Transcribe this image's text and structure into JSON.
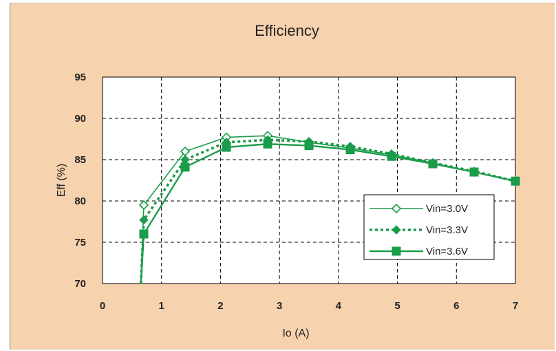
{
  "chart_data": {
    "type": "line",
    "title": "Efficiency",
    "xlabel": "Io (A)",
    "ylabel": "Eff (%)",
    "xlim": [
      0,
      7
    ],
    "ylim": [
      70,
      95
    ],
    "xticks": [
      "0",
      "1",
      "2",
      "3",
      "4",
      "5",
      "6",
      "7"
    ],
    "yticks": [
      "70",
      "75",
      "80",
      "85",
      "90",
      "95"
    ],
    "grid": true,
    "legend_position": "right",
    "colors": {
      "series": "#1a9c4a",
      "background": "#f7d2ae",
      "plot_area": "#ffffff"
    },
    "series": [
      {
        "name": "Vin=3.0V",
        "marker": "diamond-open",
        "line": "solid-thin",
        "x": [
          0.65,
          0.7,
          1.4,
          2.1,
          2.8,
          3.5,
          4.2,
          4.9,
          5.6,
          6.3,
          7.0
        ],
        "y": [
          70,
          79.5,
          86.0,
          87.7,
          87.9,
          87.1,
          86.4,
          85.6,
          84.6,
          83.5,
          82.4
        ]
      },
      {
        "name": "Vin=3.3V",
        "marker": "diamond-filled",
        "line": "dotted",
        "x": [
          0.65,
          0.7,
          1.4,
          2.1,
          2.8,
          3.5,
          4.2,
          4.9,
          5.6,
          6.3,
          7.0
        ],
        "y": [
          70,
          77.7,
          85.0,
          87.1,
          87.4,
          87.2,
          86.6,
          85.7,
          84.6,
          83.6,
          82.4
        ]
      },
      {
        "name": "Vin=3.6V",
        "marker": "square-filled",
        "line": "solid-thick",
        "x": [
          0.65,
          0.7,
          1.4,
          2.1,
          2.8,
          3.5,
          4.2,
          4.9,
          5.6,
          6.3,
          7.0
        ],
        "y": [
          70,
          76.0,
          84.1,
          86.5,
          86.9,
          86.7,
          86.2,
          85.4,
          84.5,
          83.5,
          82.4
        ]
      }
    ]
  }
}
